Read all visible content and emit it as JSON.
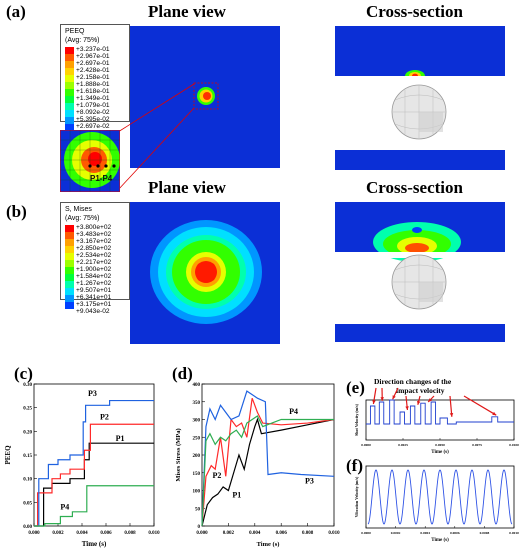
{
  "panels": {
    "a": "(a)",
    "b": "(b)",
    "c": "(c)",
    "d": "(d)",
    "e": "(e)",
    "f": "(f)"
  },
  "titles": {
    "plane_view_a": "Plane view",
    "cross_section_a": "Cross-section",
    "plane_view_b": "Plane view",
    "cross_section_b": "Cross-section"
  },
  "legend_a": {
    "name": "PEEQ",
    "avg": "(Avg: 75%)",
    "values": [
      "+3.237e-01",
      "+2.967e-01",
      "+2.697e-01",
      "+2.428e-01",
      "+2.158e-01",
      "+1.888e-01",
      "+1.618e-01",
      "+1.349e-01",
      "+1.079e-01",
      "+8.092e-02",
      "+5.395e-02",
      "+2.697e-02",
      "+0.000e+00"
    ]
  },
  "legend_b": {
    "name": "S, Mises",
    "avg": "(Avg: 75%)",
    "values": [
      "+3.800e+02",
      "+3.483e+02",
      "+3.167e+02",
      "+2.850e+02",
      "+2.534e+02",
      "+2.217e+02",
      "+1.900e+02",
      "+1.584e+02",
      "+1.267e+02",
      "+9.507e+01",
      "+6.341e+01",
      "+3.175e+01",
      "+9.043e-02"
    ]
  },
  "legend_colors": [
    "#ff0000",
    "#ff5a00",
    "#ffa000",
    "#ffd200",
    "#e6ff00",
    "#9cff00",
    "#32ff00",
    "#00ff3a",
    "#00ffae",
    "#00e0ff",
    "#0096ff",
    "#0040ff",
    "#0000ff"
  ],
  "zoom_label": "P1-P4",
  "annotation_e": {
    "line1": "Direction changes of the",
    "line2": "impact velocity"
  },
  "chart_data": [
    {
      "panel": "c",
      "type": "line",
      "xlabel": "Time (s)",
      "ylabel": "PEEQ",
      "xlim": [
        0,
        0.01
      ],
      "ylim": [
        0,
        0.3
      ],
      "xticks": [
        "0.000",
        "0.002",
        "0.004",
        "0.006",
        "0.008",
        "0.010"
      ],
      "yticks": [
        "0.00",
        "0.05",
        "0.10",
        "0.15",
        "0.20",
        "0.25",
        "0.30"
      ],
      "series": [
        {
          "name": "P1",
          "color": "#000000",
          "x": [
            0,
            0.0008,
            0.0008,
            0.0015,
            0.0015,
            0.003,
            0.003,
            0.0042,
            0.0042,
            0.0046,
            0.0046,
            0.01
          ],
          "y": [
            0,
            0,
            0.08,
            0.08,
            0.09,
            0.09,
            0.1,
            0.1,
            0.14,
            0.14,
            0.175,
            0.175
          ]
        },
        {
          "name": "P2",
          "color": "#ff2a2a",
          "x": [
            0,
            0.0003,
            0.0003,
            0.0015,
            0.0015,
            0.0022,
            0.0022,
            0.003,
            0.003,
            0.0042,
            0.0042,
            0.0047,
            0.0047,
            0.01
          ],
          "y": [
            0,
            0,
            0.07,
            0.07,
            0.1,
            0.1,
            0.11,
            0.11,
            0.12,
            0.12,
            0.16,
            0.16,
            0.215,
            0.215
          ]
        },
        {
          "name": "P3",
          "color": "#1f62e0",
          "x": [
            0,
            0.0004,
            0.0004,
            0.0012,
            0.0012,
            0.002,
            0.002,
            0.003,
            0.003,
            0.0041,
            0.0041,
            0.0043,
            0.0043,
            0.0063,
            0.0063,
            0.01
          ],
          "y": [
            0,
            0,
            0.1,
            0.1,
            0.13,
            0.13,
            0.14,
            0.14,
            0.15,
            0.15,
            0.22,
            0.22,
            0.255,
            0.255,
            0.265,
            0.265
          ]
        },
        {
          "name": "P4",
          "color": "#2fae52",
          "x": [
            0,
            0.0009,
            0.0009,
            0.0022,
            0.0022,
            0.0032,
            0.0032,
            0.0044,
            0.0044,
            0.01
          ],
          "y": [
            0,
            0,
            0.005,
            0.005,
            0.02,
            0.02,
            0.03,
            0.03,
            0.085,
            0.085
          ]
        }
      ]
    },
    {
      "panel": "d",
      "type": "line",
      "xlabel": "Time (s)",
      "ylabel": "Mises Stress (MPa)",
      "xlim": [
        0,
        0.01
      ],
      "ylim": [
        0,
        400
      ],
      "xticks": [
        "0.000",
        "0.002",
        "0.004",
        "0.006",
        "0.008",
        "0.010"
      ],
      "yticks": [
        "0",
        "50",
        "100",
        "150",
        "200",
        "250",
        "300",
        "350",
        "400"
      ],
      "series": [
        {
          "name": "P1",
          "color": "#000000",
          "x": [
            0,
            0.0004,
            0.0008,
            0.0012,
            0.0016,
            0.002,
            0.0024,
            0.0028,
            0.0032,
            0.0036,
            0.004,
            0.0042,
            0.0045,
            0.006,
            0.008,
            0.01
          ],
          "y": [
            0,
            60,
            80,
            90,
            110,
            100,
            150,
            200,
            160,
            230,
            280,
            300,
            260,
            270,
            285,
            300
          ]
        },
        {
          "name": "P2",
          "color": "#ff2a2a",
          "x": [
            0,
            0.0003,
            0.0007,
            0.001,
            0.0014,
            0.0018,
            0.0022,
            0.0026,
            0.003,
            0.0034,
            0.0038,
            0.0042,
            0.0046,
            0.006,
            0.008,
            0.01
          ],
          "y": [
            0,
            140,
            170,
            160,
            250,
            140,
            300,
            280,
            290,
            250,
            360,
            320,
            290,
            285,
            290,
            300
          ]
        },
        {
          "name": "P3",
          "color": "#1f62e0",
          "x": [
            0,
            0.0003,
            0.0006,
            0.001,
            0.0014,
            0.0018,
            0.0022,
            0.0028,
            0.0034,
            0.0038,
            0.0042,
            0.0048,
            0.005,
            0.006,
            0.0075,
            0.01
          ],
          "y": [
            0,
            280,
            330,
            300,
            340,
            320,
            300,
            310,
            380,
            370,
            360,
            350,
            145,
            150,
            145,
            140
          ]
        },
        {
          "name": "P4",
          "color": "#2fae52",
          "x": [
            0,
            0.0003,
            0.0006,
            0.001,
            0.0014,
            0.0018,
            0.0022,
            0.0026,
            0.003,
            0.0034,
            0.0038,
            0.0042,
            0.0046,
            0.006,
            0.008,
            0.01
          ],
          "y": [
            0,
            240,
            260,
            230,
            250,
            240,
            260,
            270,
            250,
            290,
            300,
            310,
            280,
            300,
            300,
            300
          ]
        }
      ]
    },
    {
      "panel": "e",
      "type": "line",
      "xlabel": "Time (s)",
      "ylabel": "Shot Velocity (m/s)",
      "xlim": [
        0,
        0.01
      ],
      "xticks": [
        "0.0000",
        "0.0025",
        "0.0050",
        "0.0075",
        "0.0100"
      ],
      "series": [
        {
          "name": "",
          "color": "#1f3fcf",
          "x": [
            0,
            0.0003,
            0.0003,
            0.0006,
            0.0006,
            0.0009,
            0.0009,
            0.0012,
            0.0012,
            0.0016,
            0.0016,
            0.0019,
            0.0019,
            0.0023,
            0.0023,
            0.0026,
            0.0026,
            0.003,
            0.003,
            0.0033,
            0.0033,
            0.0037,
            0.0037,
            0.004,
            0.004,
            0.0044,
            0.0044,
            0.0047,
            0.0047,
            0.005,
            0.005,
            0.0055,
            0.0055,
            0.0061,
            0.0061,
            0.0085,
            0.0085,
            0.0089,
            0.0089,
            0.01
          ],
          "y": [
            0.4,
            0.4,
            0.85,
            0.85,
            0.4,
            0.4,
            0.95,
            0.95,
            0.4,
            0.4,
            1.0,
            1.0,
            0.4,
            0.4,
            0.7,
            0.7,
            0.4,
            0.4,
            0.85,
            0.85,
            0.4,
            0.4,
            0.92,
            0.92,
            0.4,
            0.4,
            0.95,
            0.95,
            0.4,
            0.4,
            0.55,
            0.55,
            0.4,
            0.4,
            0.45,
            0.45,
            0.58,
            0.58,
            0.45,
            0.45
          ]
        }
      ]
    },
    {
      "panel": "f",
      "type": "line",
      "xlabel": "Time (s)",
      "ylabel": "Vibration Velocity (m/s)",
      "xlim": [
        0,
        0.01
      ],
      "xticks": [
        "0.0000",
        "0.0002",
        "0.0004",
        "0.0006",
        "0.0008",
        "0.0010"
      ],
      "series": [
        {
          "name": "",
          "color": "#2f53e6",
          "cycles": 9
        }
      ]
    }
  ]
}
